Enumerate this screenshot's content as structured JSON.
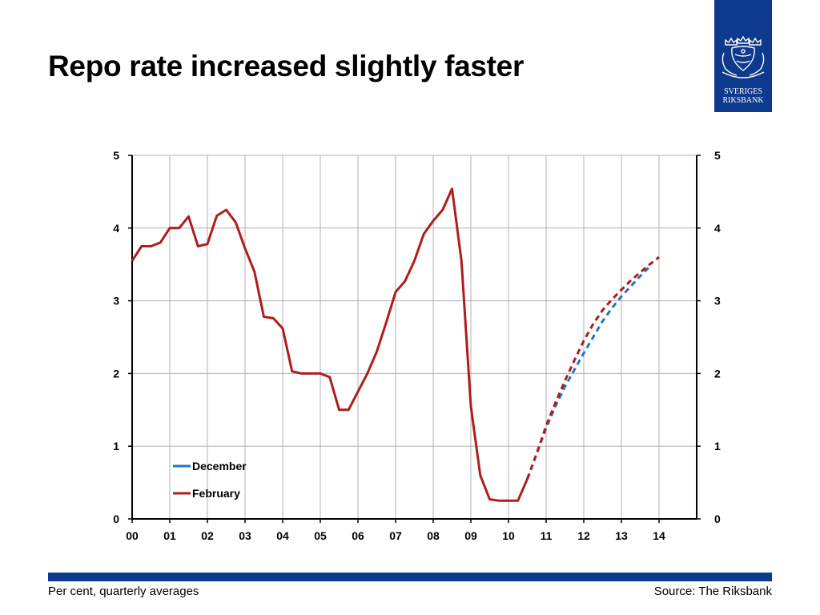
{
  "title": "Repo rate increased slightly faster",
  "logo": {
    "line1": "SVERIGES",
    "line2": "RIKSBANK"
  },
  "footer": {
    "left": "Per cent, quarterly averages",
    "right": "Source: The Riksbank"
  },
  "colors": {
    "brand": "#0d3a8c",
    "december": "#1f77c4",
    "february": "#b01c1c",
    "grid": "#b0b0b0"
  },
  "chart_data": {
    "type": "line",
    "x_tick_labels": [
      "00",
      "01",
      "02",
      "03",
      "04",
      "05",
      "06",
      "07",
      "08",
      "09",
      "10",
      "11",
      "12",
      "13",
      "14"
    ],
    "y_ticks_left": [
      0,
      1,
      2,
      3,
      4,
      5
    ],
    "y_ticks_right": [
      0,
      1,
      2,
      3,
      4,
      5
    ],
    "ylim": [
      0,
      5
    ],
    "xlim": [
      2000.0,
      2015.0
    ],
    "grid": true,
    "legend_position": "bottom-left",
    "series": [
      {
        "name": "December",
        "color": "#1f77c4",
        "style": "dashed",
        "x": [
          2010.5,
          2010.75,
          2011.0,
          2011.25,
          2011.5,
          2011.75,
          2012.0,
          2012.25,
          2012.5,
          2012.75,
          2013.0,
          2013.25,
          2013.5,
          2013.75
        ],
        "y": [
          0.55,
          0.9,
          1.25,
          1.55,
          1.82,
          2.05,
          2.28,
          2.5,
          2.72,
          2.9,
          3.06,
          3.2,
          3.34,
          3.47
        ]
      },
      {
        "name": "February",
        "color": "#b01c1c",
        "style": "solid_then_dashed",
        "x": [
          2000.0,
          2000.25,
          2000.5,
          2000.75,
          2001.0,
          2001.25,
          2001.5,
          2001.75,
          2002.0,
          2002.25,
          2002.5,
          2002.75,
          2003.0,
          2003.25,
          2003.5,
          2003.75,
          2004.0,
          2004.25,
          2004.5,
          2004.75,
          2005.0,
          2005.25,
          2005.5,
          2005.75,
          2006.0,
          2006.25,
          2006.5,
          2006.75,
          2007.0,
          2007.25,
          2007.5,
          2007.75,
          2008.0,
          2008.25,
          2008.5,
          2008.75,
          2009.0,
          2009.25,
          2009.5,
          2009.75,
          2010.0,
          2010.25,
          2010.5
        ],
        "y": [
          3.55,
          3.75,
          3.75,
          3.8,
          4.0,
          4.0,
          4.16,
          3.75,
          3.78,
          4.17,
          4.25,
          4.08,
          3.72,
          3.4,
          2.78,
          2.76,
          2.62,
          2.03,
          2.0,
          2.0,
          2.0,
          1.95,
          1.5,
          1.5,
          1.75,
          2.0,
          2.3,
          2.7,
          3.12,
          3.27,
          3.55,
          3.92,
          4.1,
          4.25,
          4.54,
          3.55,
          1.55,
          0.6,
          0.27,
          0.25,
          0.25,
          0.25,
          0.55
        ],
        "forecast_x": [
          2010.5,
          2010.75,
          2011.0,
          2011.25,
          2011.5,
          2011.75,
          2012.0,
          2012.25,
          2012.5,
          2012.75,
          2013.0,
          2013.25,
          2013.5,
          2013.75,
          2014.0
        ],
        "forecast_y": [
          0.55,
          0.9,
          1.28,
          1.6,
          1.9,
          2.18,
          2.45,
          2.68,
          2.87,
          3.02,
          3.15,
          3.28,
          3.39,
          3.5,
          3.6
        ]
      }
    ]
  }
}
